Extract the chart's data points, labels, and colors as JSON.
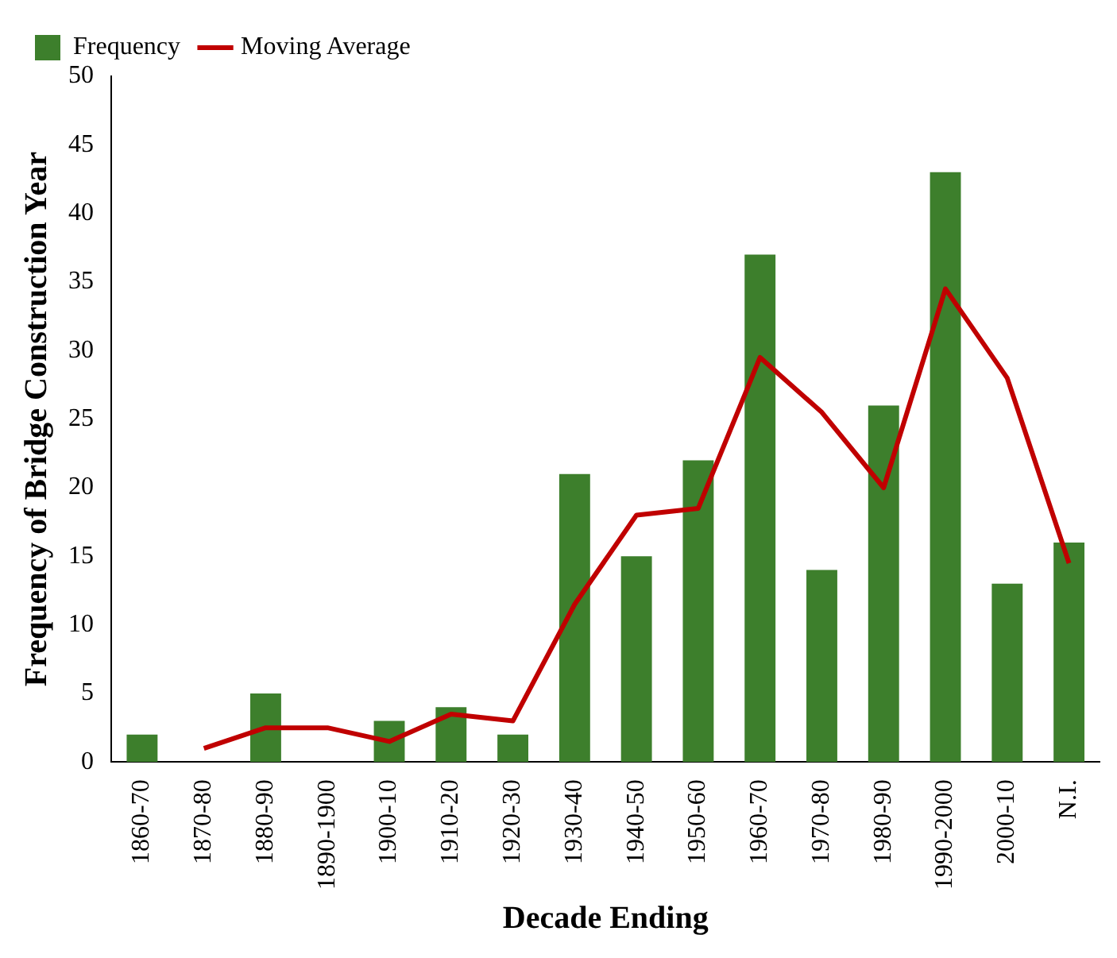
{
  "chart_data": {
    "type": "bar",
    "xlabel": "Decade Ending",
    "ylabel": "Frequency of Bridge Construction Year",
    "categories": [
      "1860-70",
      "1870-80",
      "1880-90",
      "1890-1900",
      "1900-10",
      "1910-20",
      "1920-30",
      "1930-40",
      "1940-50",
      "1950-60",
      "1960-70",
      "1970-80",
      "1980-90",
      "1990-2000",
      "2000-10",
      "N.I."
    ],
    "series": [
      {
        "name": "Frequency",
        "color": "#3d7f2c",
        "values": [
          2,
          0,
          5,
          0,
          3,
          4,
          2,
          21,
          15,
          22,
          37,
          14,
          26,
          43,
          13,
          16
        ]
      },
      {
        "name": "Moving Average",
        "type": "line",
        "color": "#c00000",
        "values": [
          null,
          1,
          2.5,
          2.5,
          1.5,
          3.5,
          3,
          11.5,
          18,
          18.5,
          29.5,
          25.5,
          20,
          34.5,
          28,
          14.5
        ]
      }
    ],
    "ylim": [
      0,
      50
    ],
    "yticks": [
      0,
      5,
      10,
      15,
      20,
      25,
      30,
      35,
      40,
      45,
      50
    ],
    "grid": false,
    "legend": "top left",
    "marker": "none"
  }
}
